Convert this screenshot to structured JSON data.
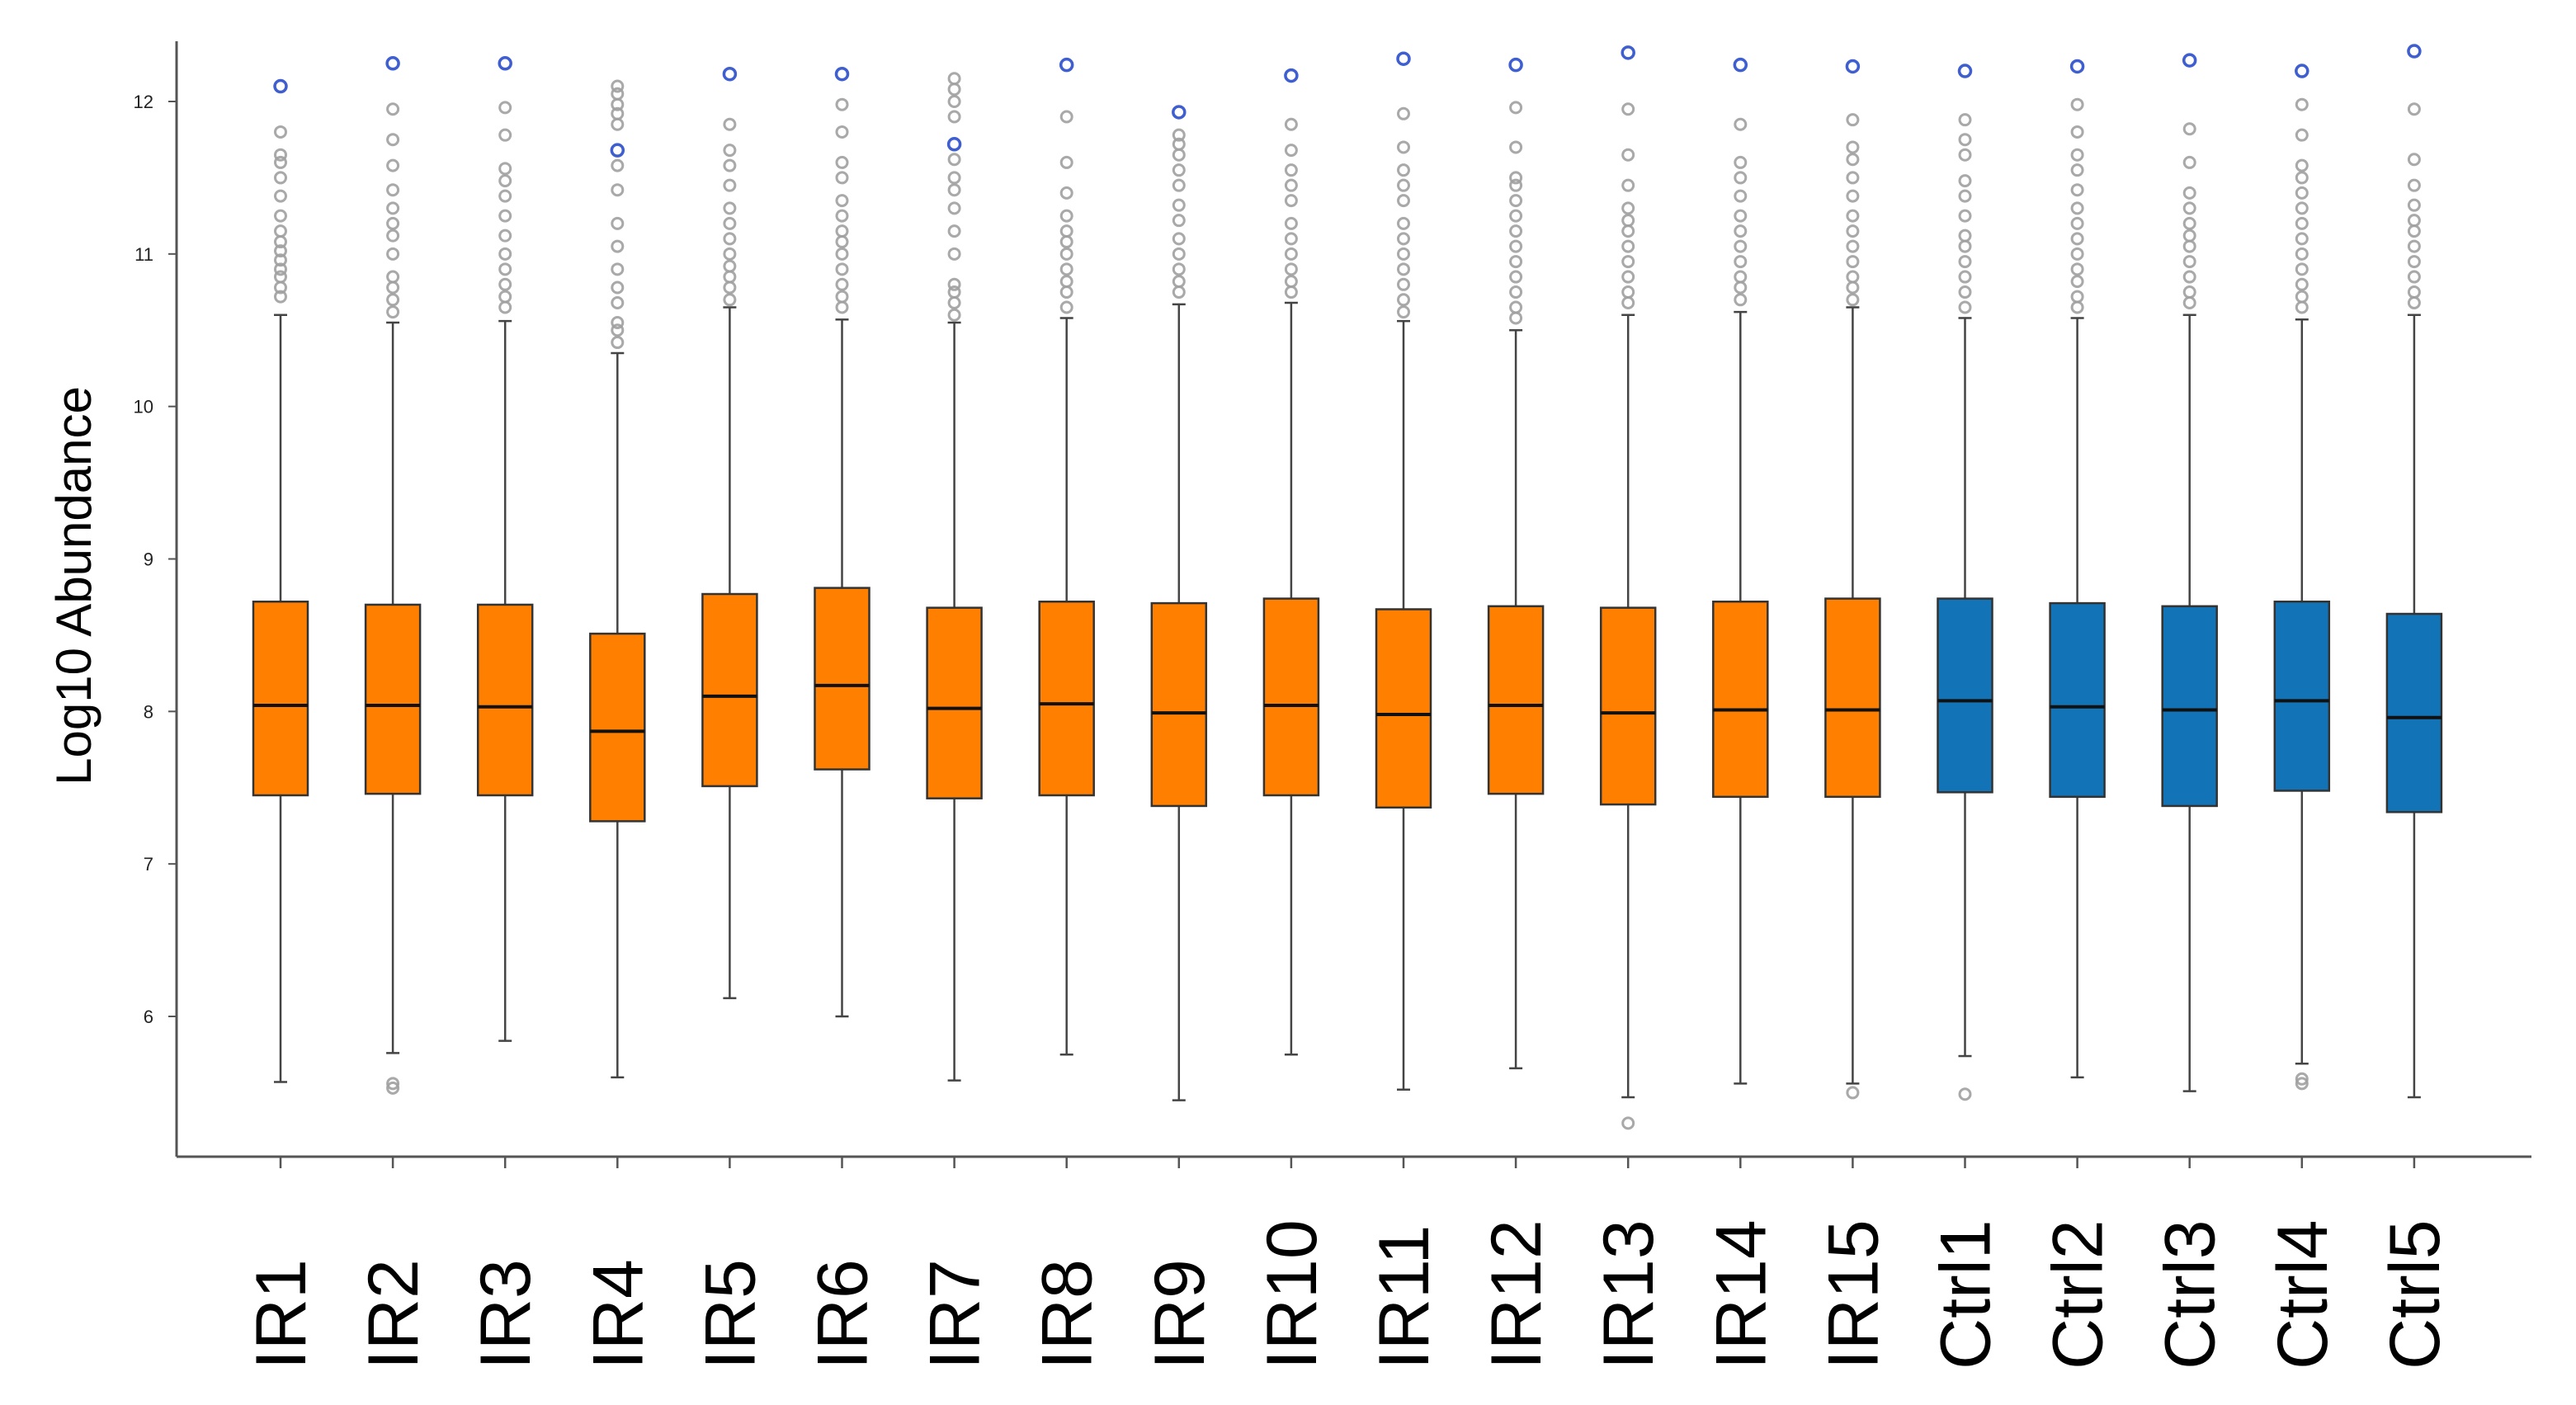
{
  "chart_data": {
    "type": "boxplot",
    "title": "",
    "xlabel": "",
    "ylabel": "Log10 Abundance",
    "ylim": [
      5.1,
      12.45
    ],
    "yticks": [
      6,
      7,
      8,
      9,
      10,
      11,
      12
    ],
    "grid": false,
    "legend": "none",
    "colors": {
      "IR": "#ff7f00",
      "Ctrl": "#1273b6",
      "outlier": "#a0a0a0",
      "max_outlier": "#3f5fd0",
      "axis": "#555555"
    },
    "categories": [
      "IR1",
      "IR2",
      "IR3",
      "IR4",
      "IR5",
      "IR6",
      "IR7",
      "IR8",
      "IR9",
      "IR10",
      "IR11",
      "IR12",
      "IR13",
      "IR14",
      "IR15",
      "Ctrl1",
      "Ctrl2",
      "Ctrl3",
      "Ctrl4",
      "Ctrl5"
    ],
    "series": [
      {
        "name": "IR1",
        "group": "IR",
        "min": 5.57,
        "q1": 7.45,
        "median": 8.04,
        "q3": 8.72,
        "whisker_high": 10.6,
        "outliers_high": [
          10.72,
          10.78,
          10.85,
          10.9,
          10.96,
          11.02,
          11.08,
          11.15,
          11.25,
          11.38,
          11.5,
          11.6,
          11.65,
          11.8
        ],
        "outliers_low": [],
        "max_marker": 12.1
      },
      {
        "name": "IR2",
        "group": "IR",
        "min": 5.76,
        "q1": 7.46,
        "median": 8.04,
        "q3": 8.7,
        "whisker_high": 10.55,
        "outliers_high": [
          10.62,
          10.7,
          10.78,
          10.85,
          11.0,
          11.12,
          11.2,
          11.3,
          11.42,
          11.58,
          11.75,
          11.95
        ],
        "outliers_low": [
          5.53,
          5.56
        ],
        "max_marker": 12.25
      },
      {
        "name": "IR3",
        "group": "IR",
        "min": 5.84,
        "q1": 7.45,
        "median": 8.03,
        "q3": 8.7,
        "whisker_high": 10.56,
        "outliers_high": [
          10.65,
          10.72,
          10.8,
          10.9,
          11.0,
          11.12,
          11.25,
          11.38,
          11.48,
          11.56,
          11.78,
          11.96
        ],
        "outliers_low": [],
        "max_marker": 12.25
      },
      {
        "name": "IR4",
        "group": "IR",
        "min": 5.6,
        "q1": 7.28,
        "median": 7.87,
        "q3": 8.51,
        "whisker_high": 10.35,
        "outliers_high": [
          10.42,
          10.5,
          10.55,
          10.68,
          10.78,
          10.9,
          11.05,
          11.2,
          11.42,
          11.58,
          11.85,
          11.92,
          11.98,
          12.05,
          12.1
        ],
        "outliers_low": [],
        "max_marker": 11.68
      },
      {
        "name": "IR5",
        "group": "IR",
        "min": 6.12,
        "q1": 7.51,
        "median": 8.1,
        "q3": 8.77,
        "whisker_high": 10.65,
        "outliers_high": [
          10.7,
          10.78,
          10.85,
          10.92,
          11.0,
          11.1,
          11.2,
          11.3,
          11.45,
          11.58,
          11.68,
          11.85
        ],
        "outliers_low": [],
        "max_marker": 12.18
      },
      {
        "name": "IR6",
        "group": "IR",
        "min": 6.0,
        "q1": 7.62,
        "median": 8.17,
        "q3": 8.81,
        "whisker_high": 10.57,
        "outliers_high": [
          10.65,
          10.72,
          10.8,
          10.9,
          11.0,
          11.08,
          11.15,
          11.25,
          11.35,
          11.5,
          11.6,
          11.8,
          11.98
        ],
        "outliers_low": [],
        "max_marker": 12.18
      },
      {
        "name": "IR7",
        "group": "IR",
        "min": 5.58,
        "q1": 7.43,
        "median": 8.02,
        "q3": 8.68,
        "whisker_high": 10.55,
        "outliers_high": [
          10.6,
          10.68,
          10.75,
          10.8,
          11.0,
          11.15,
          11.3,
          11.42,
          11.5,
          11.62,
          11.9,
          12.0,
          12.08,
          12.15
        ],
        "outliers_low": [],
        "max_marker": 11.72
      },
      {
        "name": "IR8",
        "group": "IR",
        "min": 5.75,
        "q1": 7.45,
        "median": 8.05,
        "q3": 8.72,
        "whisker_high": 10.58,
        "outliers_high": [
          10.65,
          10.75,
          10.82,
          10.9,
          11.0,
          11.08,
          11.15,
          11.25,
          11.4,
          11.6,
          11.9
        ],
        "outliers_low": [],
        "max_marker": 12.24
      },
      {
        "name": "IR9",
        "group": "IR",
        "min": 5.45,
        "q1": 7.38,
        "median": 7.99,
        "q3": 8.71,
        "whisker_high": 10.67,
        "outliers_high": [
          10.75,
          10.82,
          10.9,
          11.0,
          11.1,
          11.22,
          11.32,
          11.45,
          11.55,
          11.65,
          11.72,
          11.78
        ],
        "outliers_low": [],
        "max_marker": 11.93
      },
      {
        "name": "IR10",
        "group": "IR",
        "min": 5.75,
        "q1": 7.45,
        "median": 8.04,
        "q3": 8.74,
        "whisker_high": 10.68,
        "outliers_high": [
          10.75,
          10.82,
          10.9,
          11.0,
          11.1,
          11.2,
          11.35,
          11.45,
          11.55,
          11.68,
          11.85
        ],
        "outliers_low": [],
        "max_marker": 12.17
      },
      {
        "name": "IR11",
        "group": "IR",
        "min": 5.52,
        "q1": 7.37,
        "median": 7.98,
        "q3": 8.67,
        "whisker_high": 10.56,
        "outliers_high": [
          10.62,
          10.7,
          10.8,
          10.9,
          11.0,
          11.1,
          11.2,
          11.35,
          11.45,
          11.55,
          11.7,
          11.92
        ],
        "outliers_low": [],
        "max_marker": 12.28
      },
      {
        "name": "IR12",
        "group": "IR",
        "min": 5.66,
        "q1": 7.46,
        "median": 8.04,
        "q3": 8.69,
        "whisker_high": 10.5,
        "outliers_high": [
          10.58,
          10.65,
          10.75,
          10.85,
          10.95,
          11.05,
          11.15,
          11.25,
          11.35,
          11.45,
          11.5,
          11.7,
          11.96
        ],
        "outliers_low": [],
        "max_marker": 12.24
      },
      {
        "name": "IR13",
        "group": "IR",
        "min": 5.47,
        "q1": 7.39,
        "median": 7.99,
        "q3": 8.68,
        "whisker_high": 10.6,
        "outliers_high": [
          10.68,
          10.75,
          10.85,
          10.95,
          11.05,
          11.15,
          11.22,
          11.3,
          11.45,
          11.65,
          11.95
        ],
        "outliers_low": [
          5.3
        ],
        "max_marker": 12.32
      },
      {
        "name": "IR14",
        "group": "IR",
        "min": 5.56,
        "q1": 7.44,
        "median": 8.01,
        "q3": 8.72,
        "whisker_high": 10.62,
        "outliers_high": [
          10.7,
          10.78,
          10.85,
          10.95,
          11.05,
          11.15,
          11.25,
          11.38,
          11.5,
          11.6,
          11.85
        ],
        "outliers_low": [],
        "max_marker": 12.24
      },
      {
        "name": "IR15",
        "group": "IR",
        "min": 5.56,
        "q1": 7.44,
        "median": 8.01,
        "q3": 8.74,
        "whisker_high": 10.65,
        "outliers_high": [
          10.7,
          10.78,
          10.85,
          10.95,
          11.05,
          11.15,
          11.25,
          11.38,
          11.5,
          11.62,
          11.7,
          11.88
        ],
        "outliers_low": [
          5.5
        ],
        "max_marker": 12.23
      },
      {
        "name": "Ctrl1",
        "group": "Ctrl",
        "min": 5.74,
        "q1": 7.47,
        "median": 8.07,
        "q3": 8.74,
        "whisker_high": 10.58,
        "outliers_high": [
          10.65,
          10.75,
          10.85,
          10.95,
          11.05,
          11.12,
          11.25,
          11.38,
          11.48,
          11.65,
          11.75,
          11.88
        ],
        "outliers_low": [
          5.49
        ],
        "max_marker": 12.2
      },
      {
        "name": "Ctrl2",
        "group": "Ctrl",
        "min": 5.6,
        "q1": 7.44,
        "median": 8.03,
        "q3": 8.71,
        "whisker_high": 10.58,
        "outliers_high": [
          10.65,
          10.72,
          10.82,
          10.9,
          11.0,
          11.1,
          11.2,
          11.3,
          11.42,
          11.55,
          11.65,
          11.8,
          11.98
        ],
        "outliers_low": [],
        "max_marker": 12.23
      },
      {
        "name": "Ctrl3",
        "group": "Ctrl",
        "min": 5.51,
        "q1": 7.38,
        "median": 8.01,
        "q3": 8.69,
        "whisker_high": 10.6,
        "outliers_high": [
          10.68,
          10.75,
          10.85,
          10.95,
          11.05,
          11.12,
          11.2,
          11.3,
          11.4,
          11.6,
          11.82
        ],
        "outliers_low": [],
        "max_marker": 12.27
      },
      {
        "name": "Ctrl4",
        "group": "Ctrl",
        "min": 5.69,
        "q1": 7.48,
        "median": 8.07,
        "q3": 8.72,
        "whisker_high": 10.57,
        "outliers_high": [
          10.65,
          10.72,
          10.8,
          10.9,
          11.0,
          11.1,
          11.2,
          11.3,
          11.4,
          11.5,
          11.58,
          11.78,
          11.98
        ],
        "outliers_low": [
          5.56,
          5.59
        ],
        "max_marker": 12.2
      },
      {
        "name": "Ctrl5",
        "group": "Ctrl",
        "min": 5.47,
        "q1": 7.34,
        "median": 7.96,
        "q3": 8.64,
        "whisker_high": 10.6,
        "outliers_high": [
          10.68,
          10.75,
          10.85,
          10.95,
          11.05,
          11.15,
          11.22,
          11.32,
          11.45,
          11.62,
          11.95
        ],
        "outliers_low": [],
        "max_marker": 12.33
      }
    ]
  }
}
